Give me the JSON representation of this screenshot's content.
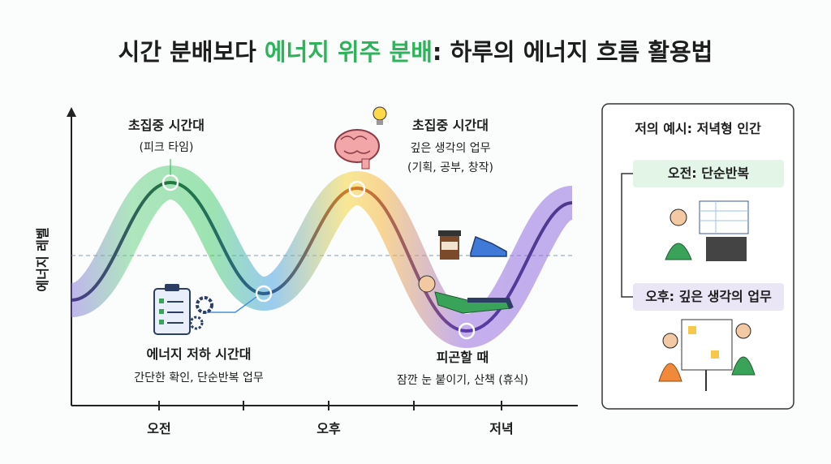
{
  "title": {
    "parts": [
      "시간 분배보다 ",
      "에너지 위주 분배",
      ": 하루의 에너지 흐름 활용법"
    ]
  },
  "y_axis_label": "에너지 레벨",
  "x_labels": [
    "오전",
    "오후",
    "저녁"
  ],
  "annotations": [
    {
      "title": "초집중 시간대",
      "lines": [
        "(피크 타임)"
      ]
    },
    {
      "title": "초집중 시간대",
      "lines": [
        "깊은 생각의 업무",
        "(기획, 공부, 창작)"
      ]
    },
    {
      "title": "에너지 저하 시간대",
      "lines": [
        "간단한 확인, 단순반복 업무"
      ]
    },
    {
      "title": "피곤할 때",
      "lines": [
        "잠깐 눈 붙이기, 산책 (휴식)"
      ]
    }
  ],
  "panel": {
    "title": "저의 예시: 저녁형 인간",
    "items": [
      "오전: 단순반복",
      "오후: 깊은 생각의 업무"
    ]
  }
}
